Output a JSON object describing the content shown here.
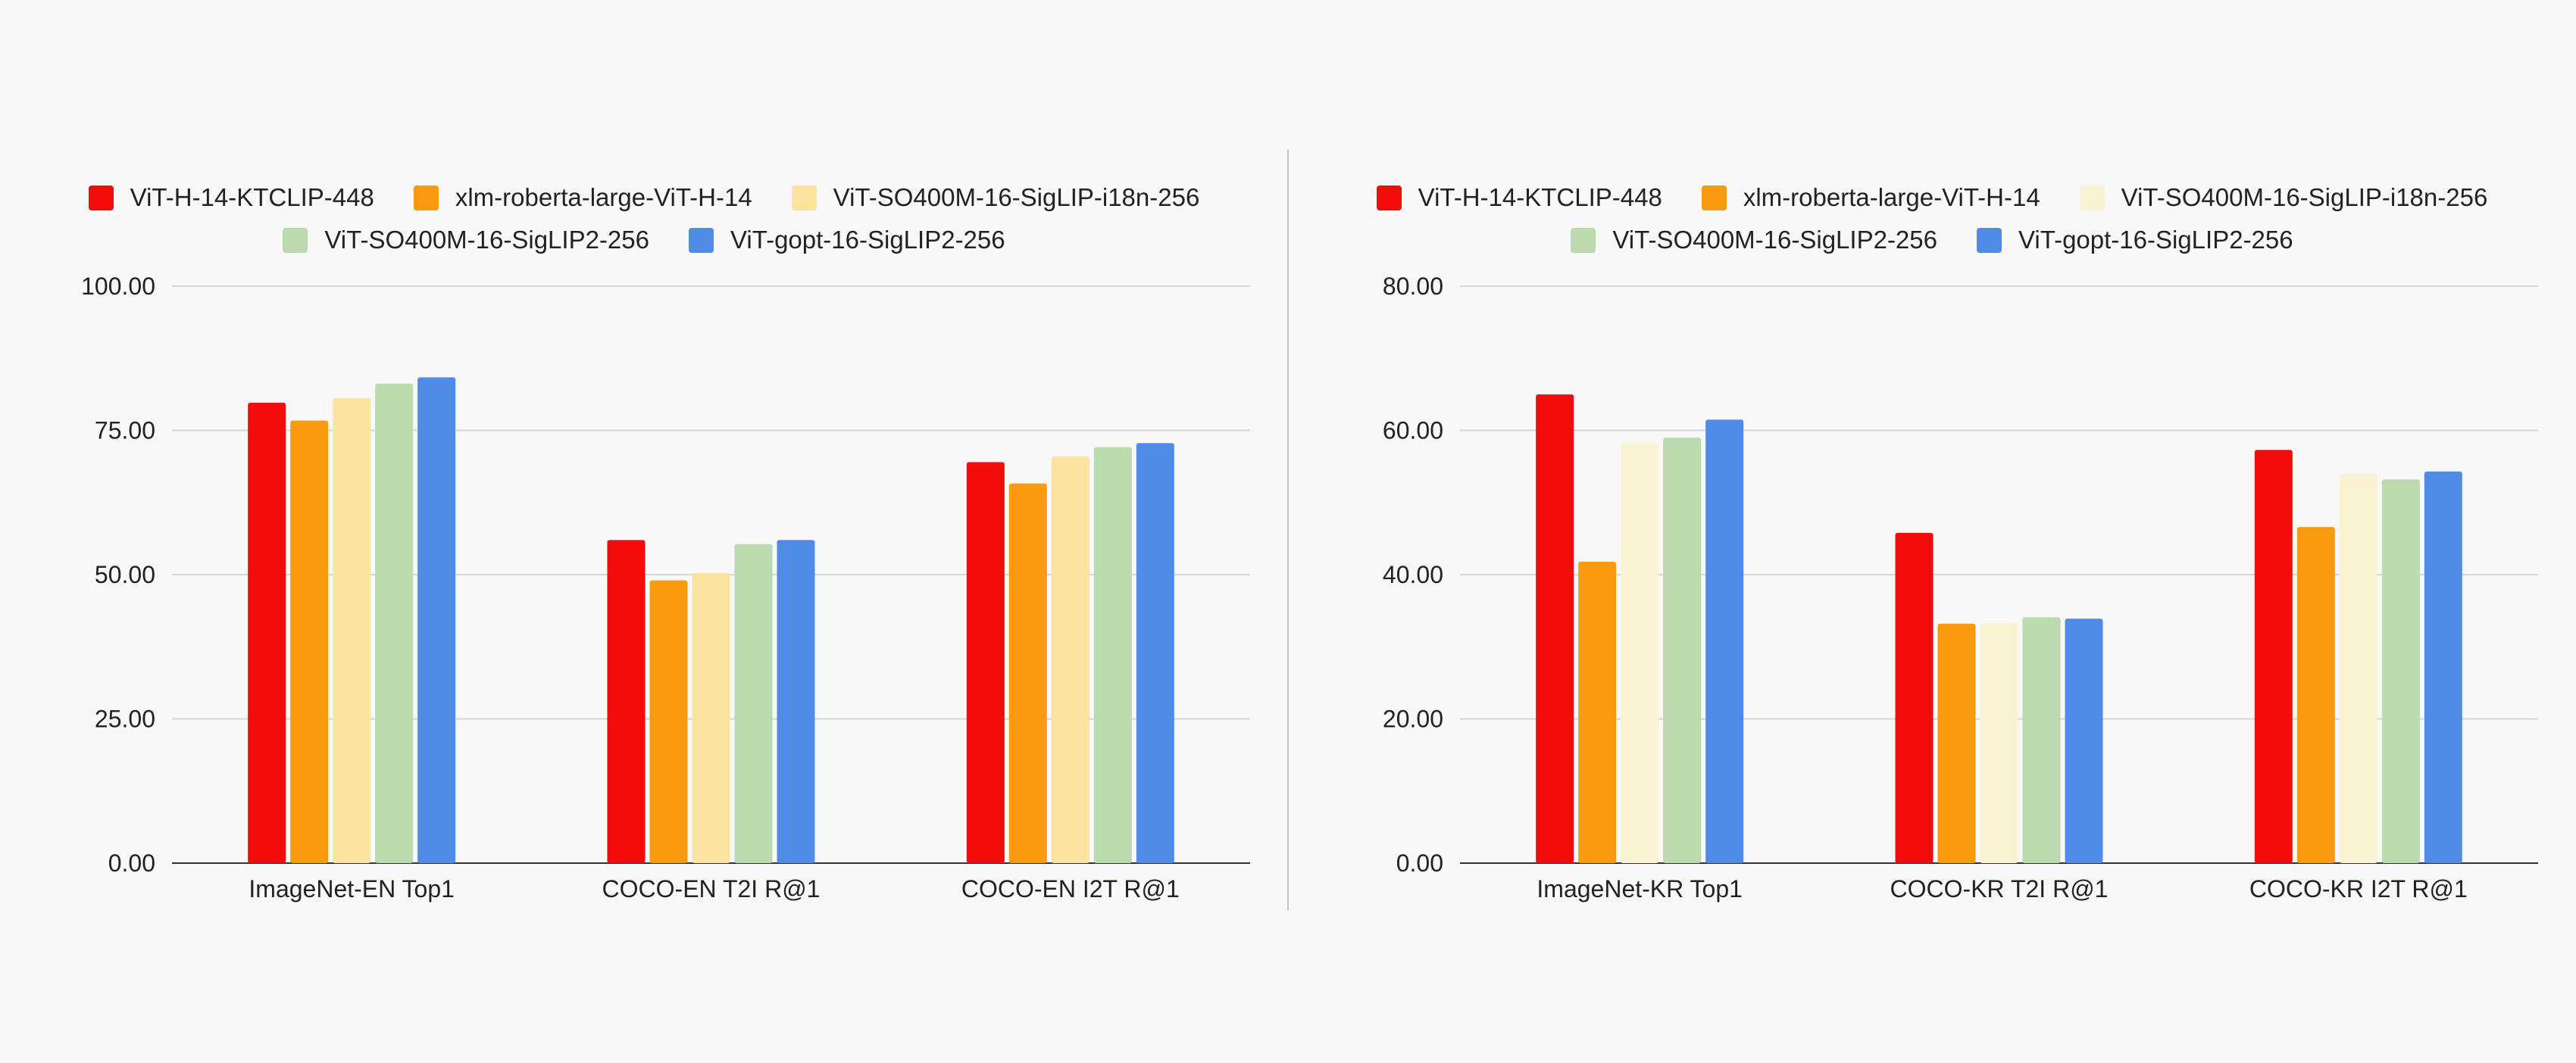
{
  "chart_data": [
    {
      "type": "bar",
      "categories": [
        "ImageNet-EN Top1",
        "COCO-EN T2I R@1",
        "COCO-EN I2T R@1"
      ],
      "ylim": [
        0,
        100
      ],
      "yticks": [
        "0.00",
        "25.00",
        "50.00",
        "75.00",
        "100.00"
      ],
      "ytick_values": [
        0,
        25,
        50,
        75,
        100
      ],
      "grid": true,
      "legend_position": "top-center",
      "series": [
        {
          "name": "ViT-H-14-KTCLIP-448",
          "color": "#f20c0c",
          "values": [
            79.8,
            56.0,
            69.5
          ]
        },
        {
          "name": "xlm-roberta-large-ViT-H-14",
          "color": "#f89b0e",
          "values": [
            76.7,
            49.0,
            65.8
          ]
        },
        {
          "name": "ViT-SO400M-16-SigLIP-i18n-256",
          "color": "#fae49f",
          "values": [
            80.6,
            50.3,
            70.5
          ]
        },
        {
          "name": "ViT-SO400M-16-SigLIP2-256",
          "color": "#bbdaae",
          "values": [
            83.1,
            55.3,
            72.1
          ]
        },
        {
          "name": "ViT-gopt-16-SigLIP2-256",
          "color": "#518be8",
          "values": [
            84.2,
            56.0,
            72.8
          ]
        }
      ]
    },
    {
      "type": "bar",
      "categories": [
        "ImageNet-KR Top1",
        "COCO-KR T2I R@1",
        "COCO-KR I2T R@1"
      ],
      "ylim": [
        0,
        80
      ],
      "yticks": [
        "0.00",
        "20.00",
        "40.00",
        "60.00",
        "80.00"
      ],
      "ytick_values": [
        0,
        20,
        40,
        60,
        80
      ],
      "grid": true,
      "legend_position": "top-center",
      "series": [
        {
          "name": "ViT-H-14-KTCLIP-448",
          "color": "#f20c0c",
          "values": [
            65.0,
            45.8,
            57.3
          ]
        },
        {
          "name": "xlm-roberta-large-ViT-H-14",
          "color": "#f89b0e",
          "values": [
            41.8,
            33.2,
            46.6
          ]
        },
        {
          "name": "ViT-SO400M-16-SigLIP-i18n-256",
          "color": "#f9f2d3",
          "values": [
            58.3,
            33.3,
            54.0
          ]
        },
        {
          "name": "ViT-SO400M-16-SigLIP2-256",
          "color": "#bbdaae",
          "values": [
            59.0,
            34.1,
            53.2
          ]
        },
        {
          "name": "ViT-gopt-16-SigLIP2-256",
          "color": "#518be8",
          "values": [
            61.5,
            33.9,
            54.3
          ]
        }
      ]
    }
  ]
}
